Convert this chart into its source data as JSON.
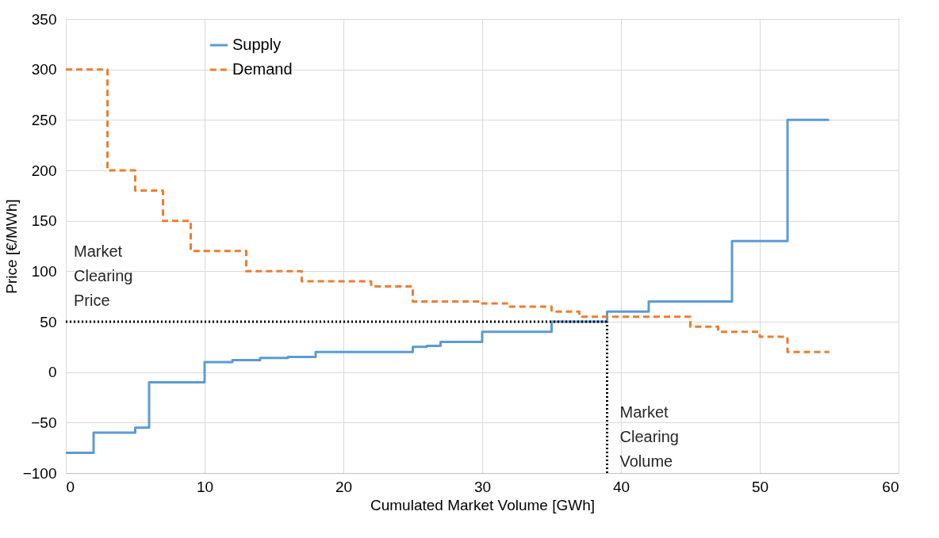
{
  "chart_data": {
    "type": "step",
    "xlabel": "Cumulated Market Volume [GWh]",
    "ylabel": "Price [€/MWh]",
    "xlim": [
      0,
      60
    ],
    "xticks": [
      0,
      10,
      20,
      30,
      40,
      50,
      60
    ],
    "ylim": [
      -100,
      350
    ],
    "yticks": [
      -100,
      -50,
      0,
      50,
      100,
      150,
      200,
      250,
      300,
      350
    ],
    "grid": true,
    "legend": "top left",
    "series": [
      {
        "name": "Supply",
        "color": "#5b9bd5",
        "line_style": "solid",
        "x": [
          0,
          2,
          5,
          6,
          10,
          12,
          14,
          16,
          18,
          25,
          26,
          27,
          30,
          35,
          39,
          42,
          48,
          52,
          55
        ],
        "values": [
          -80,
          -60,
          -55,
          -10,
          10,
          12,
          14,
          15,
          20,
          25,
          26,
          30,
          40,
          50,
          60,
          70,
          130,
          250,
          250
        ]
      },
      {
        "name": "Demand",
        "color": "#ed7d31",
        "line_style": "dashed",
        "x": [
          0,
          3,
          5,
          7,
          9,
          13,
          17,
          22,
          25,
          30,
          32,
          35,
          37,
          45,
          47,
          50,
          52,
          55
        ],
        "values": [
          300,
          200,
          180,
          150,
          120,
          100,
          90,
          85,
          70,
          68,
          65,
          60,
          55,
          45,
          40,
          35,
          20,
          20
        ]
      }
    ],
    "ref_lines": [
      {
        "axis": "y",
        "value": 50,
        "label": "Market Clearing Price",
        "color": "#000000",
        "line_style": "dotted"
      },
      {
        "axis": "x",
        "value": 39,
        "label": "Market Clearing Volume",
        "color": "#000000",
        "line_style": "dotted"
      }
    ]
  }
}
